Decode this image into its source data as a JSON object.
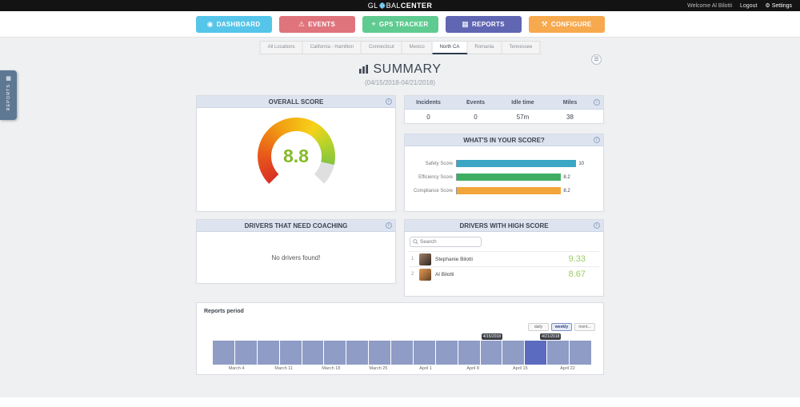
{
  "topbar": {
    "logo": {
      "part1": "GL",
      "part2": "BAL",
      "part3": "CENTER"
    },
    "welcome": "Welcome Al Bilotti",
    "logout_label": "Logout",
    "settings_label": "Settings"
  },
  "nav": {
    "items": [
      {
        "label": "DASHBOARD",
        "color": "#56c5ea",
        "icon": "gauge-icon"
      },
      {
        "label": "EVENTS",
        "color": "#df747d",
        "icon": "warning-icon"
      },
      {
        "label": "GPS TRACKER",
        "color": "#5fcb90",
        "icon": "target-icon"
      },
      {
        "label": "REPORTS",
        "color": "#6066b2",
        "icon": "chart-icon"
      },
      {
        "label": "CONFIGURE",
        "color": "#f7a94e",
        "icon": "tools-icon"
      }
    ]
  },
  "tabs": {
    "items": [
      "All Locations",
      "California - Hamilton",
      "Connecticut",
      "Mexico",
      "North CA",
      "Romania",
      "Tennessee"
    ],
    "active": "North CA"
  },
  "side_tab_label": "REPORTS",
  "page": {
    "title": "SUMMARY",
    "subtitle": "(04/15/2018-04/21/2018)"
  },
  "overall_score": {
    "header": "OVERALL SCORE",
    "value": "8.8",
    "max": 10,
    "value_color": "#84bb26",
    "gradient": [
      "#d93025",
      "#e8591a",
      "#f2a012",
      "#f7d21a",
      "#b5d32a",
      "#86c440"
    ],
    "track_color": "#dfdfdf"
  },
  "stats": {
    "columns": [
      {
        "label": "Incidents",
        "value": "0",
        "highlight": true
      },
      {
        "label": "Events",
        "value": "0"
      },
      {
        "label": "Idle time",
        "value": "57m"
      },
      {
        "label": "Miles",
        "value": "38"
      }
    ]
  },
  "score_breakdown": {
    "header": "WHAT'S IN YOUR SCORE?",
    "max": 10,
    "bars": [
      {
        "label": "Safety Score",
        "value": 10,
        "display": "10",
        "color": "#3ba7c4"
      },
      {
        "label": "Efficiency Score",
        "value": 8.2,
        "display": "8.2",
        "color": "#3fae62"
      },
      {
        "label": "Compliance Score",
        "value": 8.2,
        "display": "8.2",
        "color": "#f2a53a"
      }
    ]
  },
  "coaching": {
    "header": "DRIVERS THAT NEED COACHING",
    "empty_message": "No drivers found!"
  },
  "high_score": {
    "header": "DRIVERS WITH HIGH SCORE",
    "search_placeholder": "Search",
    "score_color": "#9ccc65",
    "drivers": [
      {
        "rank": "1",
        "name": "Stephanie Bilotti",
        "score": "9.33"
      },
      {
        "rank": "2",
        "name": "Al Bilotti",
        "score": "8.67"
      }
    ]
  },
  "reports_period": {
    "title": "Reports period",
    "buttons": [
      "daily",
      "weekly",
      "mont..."
    ],
    "active_button": "weekly",
    "tooltips": [
      "4/15/2018",
      "4/21/2018"
    ],
    "axis_labels": [
      "March 4",
      "March 11",
      "March 18",
      "March 25",
      "April 1",
      "April 8",
      "April 15",
      "April 22"
    ],
    "segments": 17,
    "highlight_index": 14,
    "bar_color": "#8f9cc5",
    "highlight_color": "#5a6bc0"
  },
  "chart_data": [
    {
      "type": "pie",
      "subtype": "gauge",
      "title": "OVERALL SCORE",
      "value": 8.8,
      "min": 0,
      "max": 10,
      "note": "270-degree donut gauge, red-to-green gradient fill, gray remainder"
    },
    {
      "type": "bar",
      "orientation": "horizontal",
      "title": "WHAT'S IN YOUR SCORE?",
      "categories": [
        "Safety Score",
        "Efficiency Score",
        "Compliance Score"
      ],
      "values": [
        10,
        8.2,
        8.2
      ],
      "colors": [
        "#3ba7c4",
        "#3fae62",
        "#f2a53a"
      ],
      "xlim": [
        0,
        10
      ],
      "grid": false,
      "legend": false
    },
    {
      "type": "bar",
      "title": "Reports period",
      "x": [
        "March 4",
        "March 11",
        "March 18",
        "March 25",
        "April 1",
        "April 8",
        "April 15",
        "April 22"
      ],
      "values": "uniform-height weekly activity band across full range",
      "selected_range": [
        "4/15/2018",
        "4/21/2018"
      ],
      "legend": false
    }
  ]
}
